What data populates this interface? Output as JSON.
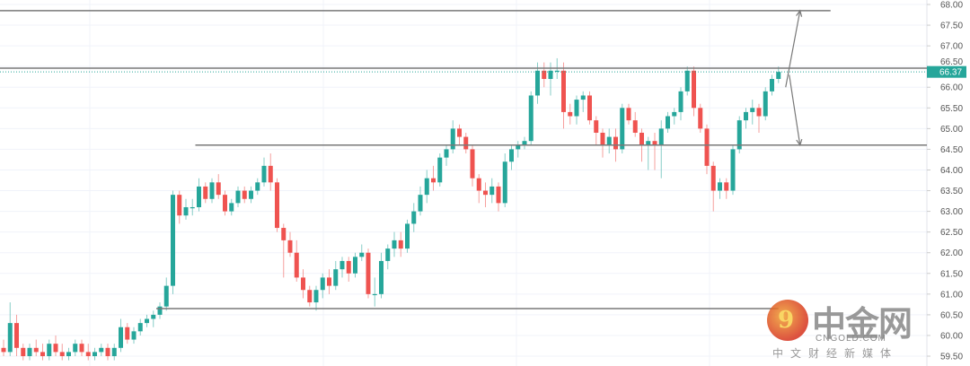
{
  "chart_data": {
    "type": "candlestick",
    "title": "",
    "xlabel": "",
    "ylabel": "",
    "ylim": [
      59.5,
      68.0
    ],
    "grid": true,
    "y_ticks": [
      "68.00",
      "67.50",
      "67.00",
      "66.50",
      "66.00",
      "65.50",
      "65.00",
      "64.50",
      "64.00",
      "63.50",
      "63.00",
      "62.50",
      "62.00",
      "61.50",
      "61.00",
      "60.50",
      "60.00",
      "59.50"
    ],
    "last_price": "66.37",
    "colors": {
      "up": "#26a69a",
      "down": "#ef5350",
      "line": "#787878",
      "grid": "#f0f3fa",
      "price_tag": "#26a69a"
    },
    "ohlc": [
      [
        59.7,
        59.9,
        59.5,
        59.6
      ],
      [
        59.6,
        60.8,
        59.5,
        60.3
      ],
      [
        60.3,
        60.5,
        59.5,
        59.7
      ],
      [
        59.7,
        59.8,
        59.4,
        59.5
      ],
      [
        59.5,
        59.8,
        59.4,
        59.7
      ],
      [
        59.7,
        59.9,
        59.5,
        59.6
      ],
      [
        59.6,
        59.8,
        59.4,
        59.5
      ],
      [
        59.5,
        59.9,
        59.4,
        59.8
      ],
      [
        59.8,
        60.0,
        59.5,
        59.6
      ],
      [
        59.6,
        59.8,
        59.4,
        59.5
      ],
      [
        59.5,
        59.7,
        59.4,
        59.6
      ],
      [
        59.6,
        59.9,
        59.5,
        59.8
      ],
      [
        59.8,
        59.9,
        59.5,
        59.6
      ],
      [
        59.6,
        59.8,
        59.4,
        59.5
      ],
      [
        59.5,
        59.7,
        59.4,
        59.6
      ],
      [
        59.6,
        59.8,
        59.5,
        59.7
      ],
      [
        59.7,
        59.8,
        59.4,
        59.5
      ],
      [
        59.5,
        59.8,
        59.4,
        59.7
      ],
      [
        59.7,
        60.4,
        59.6,
        60.2
      ],
      [
        60.2,
        60.3,
        59.8,
        59.9
      ],
      [
        59.9,
        60.2,
        59.8,
        60.1
      ],
      [
        60.1,
        60.4,
        60.0,
        60.3
      ],
      [
        60.3,
        60.5,
        60.2,
        60.4
      ],
      [
        60.4,
        60.6,
        60.2,
        60.5
      ],
      [
        60.5,
        60.8,
        60.4,
        60.7
      ],
      [
        60.7,
        61.4,
        60.6,
        61.2
      ],
      [
        61.2,
        63.5,
        61.0,
        63.4
      ],
      [
        63.4,
        63.5,
        62.7,
        62.9
      ],
      [
        62.9,
        63.3,
        62.8,
        63.1
      ],
      [
        63.1,
        63.3,
        62.9,
        63.1
      ],
      [
        63.1,
        63.8,
        63.0,
        63.6
      ],
      [
        63.6,
        63.7,
        63.2,
        63.3
      ],
      [
        63.3,
        63.8,
        63.2,
        63.7
      ],
      [
        63.7,
        63.9,
        63.3,
        63.4
      ],
      [
        63.4,
        63.5,
        62.9,
        63.0
      ],
      [
        63.0,
        63.3,
        62.9,
        63.2
      ],
      [
        63.2,
        63.6,
        63.1,
        63.5
      ],
      [
        63.5,
        63.6,
        63.2,
        63.3
      ],
      [
        63.3,
        63.6,
        63.2,
        63.5
      ],
      [
        63.5,
        63.8,
        63.4,
        63.7
      ],
      [
        63.7,
        64.3,
        63.6,
        64.1
      ],
      [
        64.1,
        64.4,
        63.5,
        63.7
      ],
      [
        63.7,
        63.8,
        62.5,
        62.6
      ],
      [
        62.6,
        62.7,
        61.4,
        62.3
      ],
      [
        62.3,
        62.5,
        61.9,
        62.0
      ],
      [
        62.0,
        62.3,
        61.3,
        61.4
      ],
      [
        61.4,
        61.6,
        60.9,
        61.1
      ],
      [
        61.1,
        61.2,
        60.7,
        60.8
      ],
      [
        60.8,
        61.2,
        60.6,
        61.1
      ],
      [
        61.1,
        61.5,
        60.9,
        61.4
      ],
      [
        61.4,
        61.6,
        61.0,
        61.2
      ],
      [
        61.2,
        61.8,
        61.1,
        61.6
      ],
      [
        61.6,
        61.9,
        61.4,
        61.8
      ],
      [
        61.8,
        61.9,
        61.3,
        61.5
      ],
      [
        61.5,
        62.0,
        61.4,
        61.9
      ],
      [
        61.9,
        62.2,
        61.8,
        62.0
      ],
      [
        62.0,
        62.1,
        60.9,
        61.0
      ],
      [
        61.0,
        61.4,
        60.7,
        61.0
      ],
      [
        61.0,
        62.0,
        60.9,
        61.8
      ],
      [
        61.8,
        62.2,
        61.6,
        62.1
      ],
      [
        62.1,
        62.5,
        61.9,
        62.3
      ],
      [
        62.3,
        62.5,
        61.9,
        62.1
      ],
      [
        62.1,
        62.8,
        62.0,
        62.7
      ],
      [
        62.7,
        63.2,
        62.5,
        63.0
      ],
      [
        63.0,
        63.6,
        62.9,
        63.4
      ],
      [
        63.4,
        64.0,
        63.2,
        63.8
      ],
      [
        63.8,
        64.1,
        63.5,
        63.7
      ],
      [
        63.7,
        64.4,
        63.6,
        64.3
      ],
      [
        64.3,
        64.6,
        64.1,
        64.5
      ],
      [
        64.5,
        65.2,
        64.4,
        65.0
      ],
      [
        65.0,
        65.1,
        64.6,
        64.8
      ],
      [
        64.8,
        64.9,
        64.4,
        64.5
      ],
      [
        64.5,
        64.6,
        63.6,
        63.8
      ],
      [
        63.8,
        63.9,
        63.2,
        63.5
      ],
      [
        63.5,
        63.7,
        63.1,
        63.4
      ],
      [
        63.4,
        63.8,
        63.2,
        63.6
      ],
      [
        63.6,
        63.7,
        63.0,
        63.2
      ],
      [
        63.2,
        64.4,
        63.1,
        64.2
      ],
      [
        64.2,
        64.6,
        64.0,
        64.5
      ],
      [
        64.5,
        64.7,
        64.3,
        64.6
      ],
      [
        64.6,
        64.8,
        64.5,
        64.7
      ],
      [
        64.7,
        65.9,
        64.6,
        65.8
      ],
      [
        65.8,
        66.6,
        65.6,
        66.4
      ],
      [
        66.4,
        66.6,
        66.0,
        66.2
      ],
      [
        66.2,
        66.6,
        65.8,
        66.4
      ],
      [
        66.4,
        66.7,
        66.2,
        66.4
      ],
      [
        66.4,
        66.6,
        65.0,
        65.4
      ],
      [
        65.4,
        65.6,
        65.1,
        65.3
      ],
      [
        65.3,
        65.8,
        65.1,
        65.7
      ],
      [
        65.7,
        65.9,
        65.4,
        65.8
      ],
      [
        65.8,
        65.9,
        65.1,
        65.2
      ],
      [
        65.2,
        65.3,
        64.6,
        64.9
      ],
      [
        64.9,
        65.0,
        64.3,
        64.6
      ],
      [
        64.6,
        65.0,
        64.4,
        64.8
      ],
      [
        64.8,
        65.0,
        64.2,
        64.5
      ],
      [
        64.5,
        65.6,
        64.4,
        65.5
      ],
      [
        65.5,
        65.6,
        65.1,
        65.2
      ],
      [
        65.2,
        65.4,
        64.8,
        64.9
      ],
      [
        64.9,
        65.0,
        64.2,
        64.6
      ],
      [
        64.6,
        64.8,
        64.0,
        64.7
      ],
      [
        64.7,
        64.9,
        64.0,
        64.6
      ],
      [
        64.6,
        65.2,
        63.8,
        65.0
      ],
      [
        65.0,
        65.4,
        64.9,
        65.3
      ],
      [
        65.3,
        65.5,
        65.1,
        65.4
      ],
      [
        65.4,
        66.0,
        65.2,
        65.9
      ],
      [
        65.9,
        66.5,
        65.8,
        66.4
      ],
      [
        66.4,
        66.5,
        65.3,
        65.5
      ],
      [
        65.5,
        65.6,
        64.9,
        65.0
      ],
      [
        65.0,
        65.1,
        63.9,
        64.1
      ],
      [
        64.1,
        64.2,
        63.0,
        63.5
      ],
      [
        63.5,
        63.8,
        63.3,
        63.7
      ],
      [
        63.7,
        63.8,
        63.3,
        63.5
      ],
      [
        63.5,
        64.6,
        63.4,
        64.5
      ],
      [
        64.5,
        65.3,
        64.4,
        65.2
      ],
      [
        65.2,
        65.5,
        65.0,
        65.4
      ],
      [
        65.4,
        65.7,
        65.1,
        65.5
      ],
      [
        65.5,
        65.6,
        64.9,
        65.3
      ],
      [
        65.3,
        66.0,
        65.2,
        65.9
      ],
      [
        65.9,
        66.3,
        65.8,
        66.2
      ],
      [
        66.2,
        66.5,
        66.1,
        66.37
      ]
    ],
    "annotations": {
      "horizontal_levels": [
        {
          "price": 67.85,
          "from_index": 0,
          "to_index": 127
        },
        {
          "price": 66.46,
          "from_index": 0,
          "to_index": 142
        },
        {
          "price": 64.6,
          "from_index": 30,
          "to_index": 142
        },
        {
          "price": 60.65,
          "from_index": 24,
          "to_index": 119
        }
      ],
      "arrows": [
        {
          "direction": "up",
          "from_price": 66.0,
          "to_price": 67.85
        },
        {
          "direction": "down",
          "from_price": 66.3,
          "to_price": 64.6
        }
      ]
    }
  },
  "watermark": {
    "logo_glyph": "9",
    "name": "中金网",
    "domain": "CNGOLD.COM",
    "tagline": "中文财经新媒体"
  }
}
